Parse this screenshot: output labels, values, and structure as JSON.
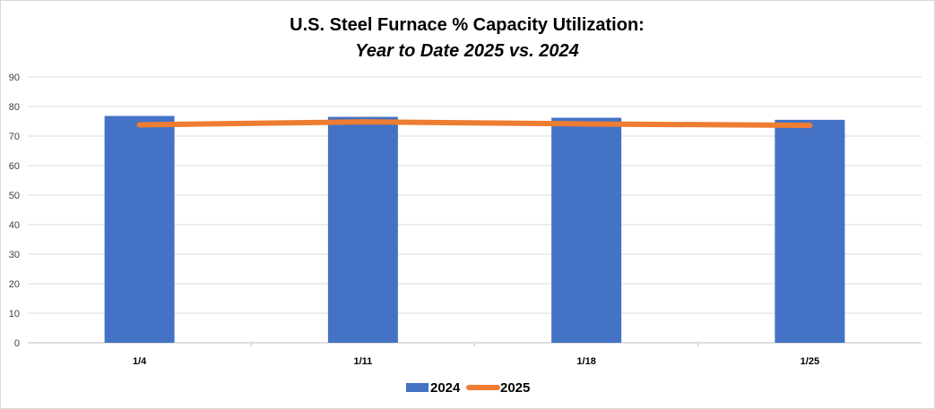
{
  "chart_data": {
    "type": "bar",
    "title": "U.S. Steel Furnace % Capacity Utilization:",
    "subtitle": "Year to Date 2025 vs. 2024",
    "categories": [
      "1/4",
      "1/11",
      "1/18",
      "1/25"
    ],
    "series": [
      {
        "name": "2024",
        "type": "bar",
        "color": "#4472C4",
        "values": [
          76.8,
          76.5,
          76.2,
          75.5
        ]
      },
      {
        "name": "2025",
        "type": "line",
        "color": "#ED7D31",
        "values": [
          73.8,
          74.8,
          74.1,
          73.6
        ]
      }
    ],
    "ylim": [
      0,
      90
    ],
    "yticks": [
      "0",
      "10",
      "20",
      "30",
      "40",
      "50",
      "60",
      "70",
      "80",
      "90"
    ],
    "grid": true,
    "legend": "bottom",
    "xlabel": "",
    "ylabel": ""
  }
}
